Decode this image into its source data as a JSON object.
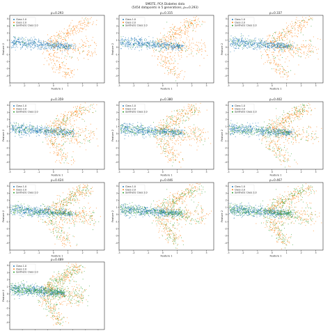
{
  "figure": {
    "suptitle_line1": "SMOTE, PCA Diabetes data",
    "suptitle_line2": "(5454 datapoints in 5 generations, ρ₀=0.293)"
  },
  "colors": {
    "class1": "#1f77b4",
    "class2": "#ff7f0e",
    "synthetic": "#2ca02c"
  },
  "chart_data": [
    {
      "type": "scatter",
      "title": "ρ=0.293",
      "xlabel": "Feature 1",
      "ylabel": "Feature 2",
      "xlim": [
        -3,
        3.5
      ],
      "ylim": [
        -5,
        4.5
      ],
      "xticks": [
        -3,
        -2,
        -1,
        0,
        1,
        2,
        3
      ],
      "yticks": [
        -4,
        -3,
        -2,
        -1,
        0,
        1,
        2,
        3,
        4
      ],
      "legend": [
        "Class 1.0",
        "Class 2.0",
        "Synthetic Class 2.0"
      ],
      "legend_loc": "upper left",
      "synthetic_fraction": 0.05
    },
    {
      "type": "scatter",
      "title": "ρ=0.315",
      "xlabel": "Feature 1",
      "ylabel": "Feature 2",
      "xlim": [
        -3,
        3.5
      ],
      "ylim": [
        -5,
        4.5
      ],
      "xticks": [
        -3,
        -2,
        -1,
        0,
        1,
        2,
        3
      ],
      "yticks": [
        -4,
        -3,
        -2,
        -1,
        0,
        1,
        2,
        3,
        4
      ],
      "legend": [
        "Class 1.0",
        "Class 2.0",
        "Synthetic Class 2.0"
      ],
      "legend_loc": "upper left",
      "synthetic_fraction": 0.1
    },
    {
      "type": "scatter",
      "title": "ρ=0.337",
      "xlabel": "Feature 1",
      "ylabel": "Feature 2",
      "xlim": [
        -3,
        3.5
      ],
      "ylim": [
        -5,
        4.5
      ],
      "xticks": [
        -3,
        -2,
        -1,
        0,
        1,
        2,
        3
      ],
      "yticks": [
        -4,
        -3,
        -2,
        -1,
        0,
        1,
        2,
        3,
        4
      ],
      "legend": [
        "Class 1.0",
        "Class 2.0",
        "Synthetic Class 2.0"
      ],
      "legend_loc": "upper left",
      "synthetic_fraction": 0.15
    },
    {
      "type": "scatter",
      "title": "ρ=0.359",
      "xlabel": "Feature 1",
      "ylabel": "Feature 2",
      "xlim": [
        -3,
        3.5
      ],
      "ylim": [
        -5,
        4.5
      ],
      "xticks": [
        -3,
        -2,
        -1,
        0,
        1,
        2,
        3
      ],
      "yticks": [
        -4,
        -3,
        -2,
        -1,
        0,
        1,
        2,
        3,
        4
      ],
      "legend": [
        "Class 1.0",
        "Class 2.0",
        "Synthetic Class 2.0"
      ],
      "legend_loc": "upper left",
      "synthetic_fraction": 0.22
    },
    {
      "type": "scatter",
      "title": "ρ=0.380",
      "xlabel": "Feature 1",
      "ylabel": "Feature 2",
      "xlim": [
        -3,
        3.5
      ],
      "ylim": [
        -5,
        4.5
      ],
      "xticks": [
        -3,
        -2,
        -1,
        0,
        1,
        2,
        3
      ],
      "yticks": [
        -4,
        -3,
        -2,
        -1,
        0,
        1,
        2,
        3,
        4
      ],
      "legend": [
        "Class 1.0",
        "Class 2.0",
        "Synthetic Class 2.0"
      ],
      "legend_loc": "upper left",
      "synthetic_fraction": 0.28
    },
    {
      "type": "scatter",
      "title": "ρ=0.402",
      "xlabel": "Feature 1",
      "ylabel": "Feature 2",
      "xlim": [
        -3,
        3.5
      ],
      "ylim": [
        -5,
        4.5
      ],
      "xticks": [
        -3,
        -2,
        -1,
        0,
        1,
        2,
        3
      ],
      "yticks": [
        -4,
        -3,
        -2,
        -1,
        0,
        1,
        2,
        3,
        4
      ],
      "legend": [
        "Class 1.0",
        "Class 2.0",
        "Synthetic Class 2.0"
      ],
      "legend_loc": "upper left",
      "synthetic_fraction": 0.34
    },
    {
      "type": "scatter",
      "title": "ρ=0.424",
      "xlabel": "Feature 1",
      "ylabel": "Feature 2",
      "xlim": [
        -3,
        3.5
      ],
      "ylim": [
        -5,
        4.5
      ],
      "xticks": [
        -3,
        -2,
        -1,
        0,
        1,
        2,
        3
      ],
      "yticks": [
        -4,
        -3,
        -2,
        -1,
        0,
        1,
        2,
        3,
        4
      ],
      "legend": [
        "Class 1.0",
        "Class 2.0",
        "Synthetic Class 2.0"
      ],
      "legend_loc": "upper left",
      "synthetic_fraction": 0.42
    },
    {
      "type": "scatter",
      "title": "ρ=0.446",
      "xlabel": "Feature 1",
      "ylabel": "Feature 2",
      "xlim": [
        -3,
        3.5
      ],
      "ylim": [
        -5,
        4.5
      ],
      "xticks": [
        -3,
        -2,
        -1,
        0,
        1,
        2,
        3
      ],
      "yticks": [
        -4,
        -3,
        -2,
        -1,
        0,
        1,
        2,
        3,
        4
      ],
      "legend": [
        "Class 1.0",
        "Class 2.0",
        "Synthetic Class 2.0"
      ],
      "legend_loc": "upper left",
      "synthetic_fraction": 0.5
    },
    {
      "type": "scatter",
      "title": "ρ=0.467",
      "xlabel": "Feature 1",
      "ylabel": "Feature 2",
      "xlim": [
        -3,
        3.5
      ],
      "ylim": [
        -5,
        4.5
      ],
      "xticks": [
        -3,
        -2,
        -1,
        0,
        1,
        2,
        3
      ],
      "yticks": [
        -4,
        -3,
        -2,
        -1,
        0,
        1,
        2,
        3,
        4
      ],
      "legend": [
        "Class 1.0",
        "Class 2.0",
        "Synthetic Class 2.0"
      ],
      "legend_loc": "upper left",
      "synthetic_fraction": 0.58
    },
    {
      "type": "scatter",
      "title": "ρ=0.489",
      "xlabel": "Feature 1",
      "ylabel": "Feature 2",
      "xlim": [
        -3,
        4.5
      ],
      "ylim": [
        -5,
        4.5
      ],
      "xticks": [
        -2,
        -1,
        0,
        1,
        2,
        3,
        4
      ],
      "yticks": [
        -4,
        -3,
        -2,
        -1,
        0,
        1,
        2,
        3,
        4
      ],
      "legend": [
        "Class 1.0",
        "Class 2.0",
        "Synthetic Class 2.0"
      ],
      "legend_loc": "upper left",
      "synthetic_fraction": 0.66
    }
  ]
}
